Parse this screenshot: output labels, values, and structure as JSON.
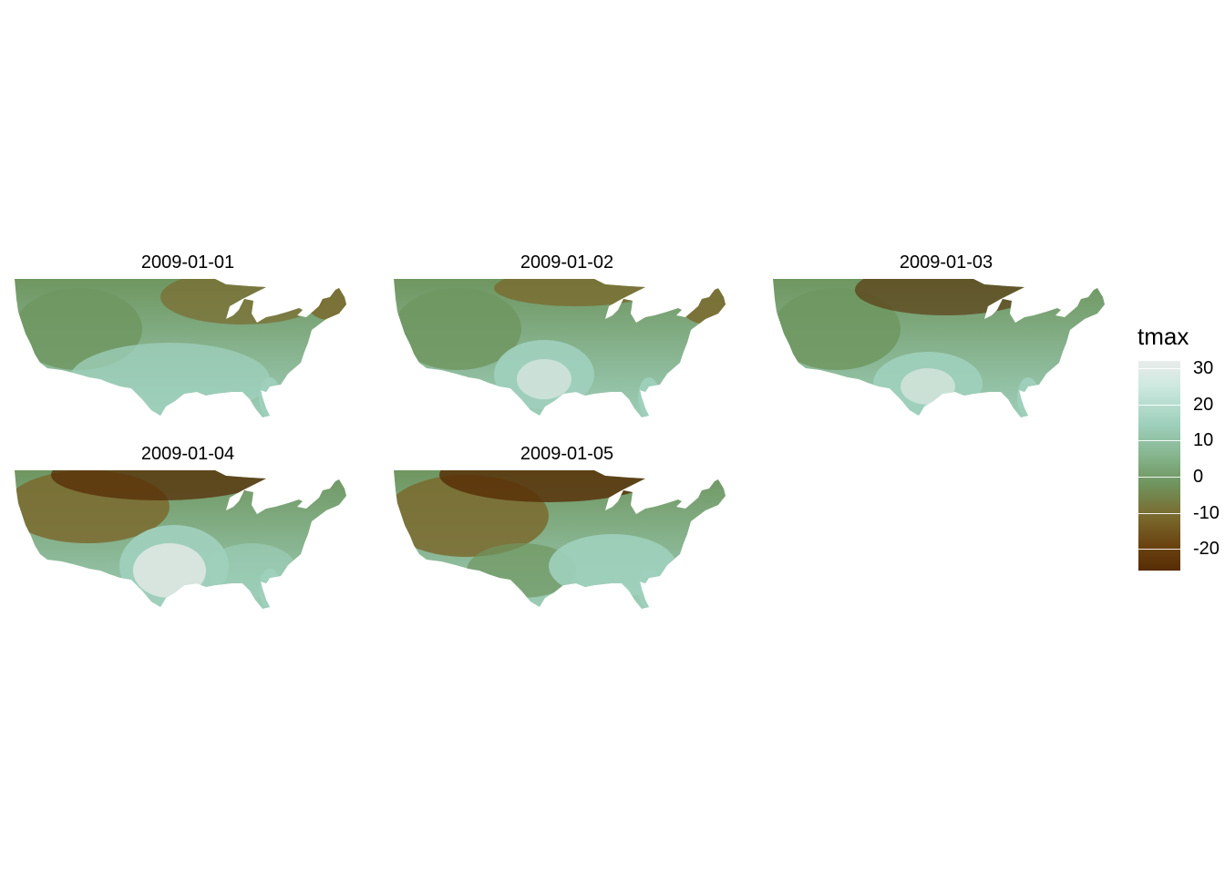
{
  "map": {
    "panels": [
      {
        "date": "2009-01-01",
        "pattern": "mild"
      },
      {
        "date": "2009-01-02",
        "pattern": "warm-texas"
      },
      {
        "date": "2009-01-03",
        "pattern": "cold-north"
      },
      {
        "date": "2009-01-04",
        "pattern": "very-cold-north"
      },
      {
        "date": "2009-01-05",
        "pattern": "cold-west-front"
      }
    ],
    "legend": {
      "title": "tmax",
      "ticks": [
        "30",
        "20",
        "10",
        "0",
        "-10",
        "-20"
      ],
      "tick_values": [
        30,
        20,
        10,
        0,
        -10,
        -20
      ],
      "range": [
        -26,
        32
      ],
      "colors": {
        "cold": "#572c05",
        "mid_cold": "#7a6a2e",
        "mid": "#6f9660",
        "warm": "#9fd0bd",
        "hot": "#e9ecea"
      }
    }
  }
}
